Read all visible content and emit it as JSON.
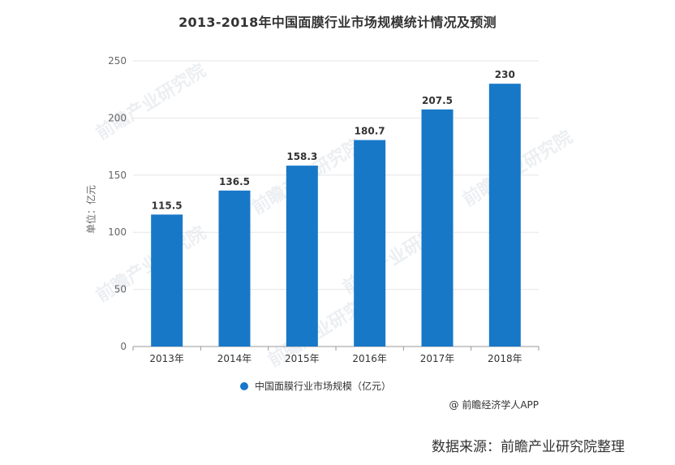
{
  "title": "2013-2018年中国面膜行业市场规模统计情况及预测",
  "colors": {
    "bar": "#1878c8",
    "grid": "#e6e6e6",
    "axis": "#999999"
  },
  "legend_label": "中国面膜行业市场规模（亿元）",
  "credit": "@ 前瞻经济学人APP",
  "source_note": "数据来源：前瞻产业研究院整理",
  "watermark_text": "前瞻产业研究院",
  "chart_data": {
    "type": "bar",
    "title": "2013-2018年中国面膜行业市场规模统计情况及预测",
    "ylabel": "单位：亿元",
    "xlabel": "",
    "categories": [
      "2013年",
      "2014年",
      "2015年",
      "2016年",
      "2017年",
      "2018年"
    ],
    "series": [
      {
        "name": "中国面膜行业市场规模（亿元）",
        "values": [
          115.5,
          136.5,
          158.3,
          180.7,
          207.5,
          230
        ]
      }
    ],
    "data_labels": [
      "115.5",
      "136.5",
      "158.3",
      "180.7",
      "207.5",
      "230"
    ],
    "ylim": [
      0,
      250
    ],
    "yticks": [
      0,
      50,
      100,
      150,
      200,
      250
    ],
    "grid": true,
    "legend_position": "bottom"
  }
}
